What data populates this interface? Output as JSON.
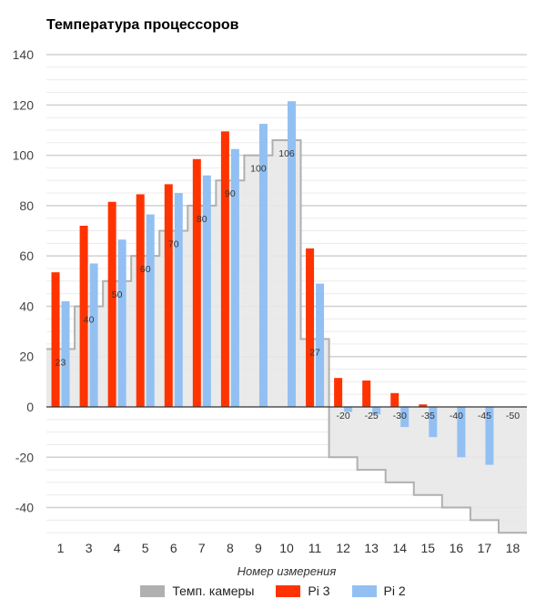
{
  "chart_data": {
    "type": "bar",
    "title": "Температура процессоров",
    "xlabel": "Номер измерения",
    "ylabel": "",
    "ylim": [
      -50,
      140
    ],
    "yticks": [
      140,
      120,
      100,
      80,
      60,
      40,
      20,
      0,
      -20,
      -40
    ],
    "grid": true,
    "legend_position": "bottom",
    "categories": [
      "1",
      "3",
      "4",
      "5",
      "6",
      "7",
      "8",
      "9",
      "10",
      "11",
      "12",
      "13",
      "14",
      "15",
      "16",
      "17",
      "18"
    ],
    "series": [
      {
        "name": "Темп. камеры",
        "type": "stepped-area",
        "color": "#b0b0b0",
        "values": [
          23,
          40,
          50,
          60,
          70,
          80,
          90,
          100,
          106,
          27,
          -20,
          -25,
          -30,
          -35,
          -40,
          -45,
          -50
        ],
        "labels": [
          "23",
          "40",
          "50",
          "60",
          "70",
          "80",
          "90",
          "100",
          "106",
          "27",
          "-20",
          "-25",
          "-30",
          "-35",
          "-40",
          "-45",
          "-50"
        ]
      },
      {
        "name": "Pi 3",
        "type": "bar",
        "color": "#ff3300",
        "values": [
          53.5,
          72,
          81.5,
          84.5,
          88.5,
          98.5,
          109.5,
          null,
          null,
          63,
          11.5,
          10.5,
          5.5,
          1,
          null,
          null,
          null
        ]
      },
      {
        "name": "Pi 2",
        "type": "bar",
        "color": "#93c0f2",
        "values": [
          42,
          57,
          66.5,
          76.5,
          85,
          92,
          102.5,
          112.5,
          121.5,
          49,
          -2,
          -3,
          -8,
          -12,
          -20,
          -23,
          null
        ]
      }
    ]
  }
}
